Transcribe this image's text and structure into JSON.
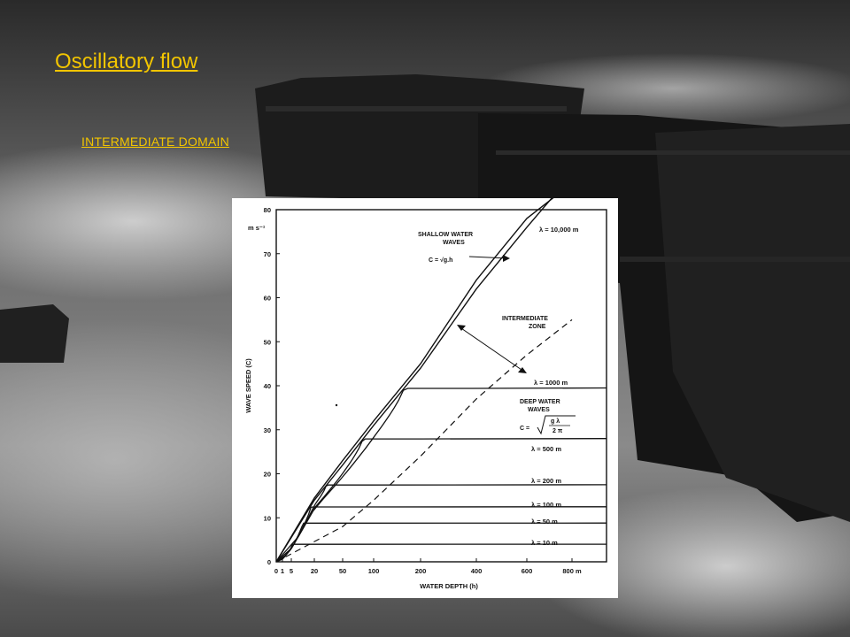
{
  "slide": {
    "title": "Oscillatory flow",
    "subtitle": "INTERMEDIATE DOMAIN"
  },
  "colors": {
    "link": "#f2c500",
    "background": "#3a3a3a"
  },
  "chart_data": {
    "type": "line",
    "xlabel": "WATER DEPTH (h)",
    "ylabel": "WAVE SPEED (C)",
    "yunit": "m s⁻¹",
    "xscale": "piecewise-sqrt",
    "xticks": [
      "0",
      "1",
      "5",
      "20",
      "50",
      "100",
      "200",
      "400",
      "600",
      "800 m"
    ],
    "xtick_values": [
      0,
      1,
      5,
      20,
      50,
      100,
      200,
      400,
      600,
      800
    ],
    "yticks": [
      "0",
      "10",
      "20",
      "30",
      "40",
      "50",
      "60",
      "70",
      "80"
    ],
    "ytick_values": [
      0,
      10,
      20,
      30,
      40,
      50,
      60,
      70,
      80
    ],
    "ylim": [
      0,
      80
    ],
    "xlim": [
      0,
      900
    ],
    "shallow_line": {
      "label": "SHALLOW WATER WAVES",
      "formula": "C = √g.h",
      "x": [
        0,
        20,
        50,
        100,
        200,
        400,
        600,
        800
      ],
      "y": [
        0,
        14,
        22,
        31,
        44,
        62,
        76,
        88
      ]
    },
    "deep_line": {
      "x": [
        0,
        50,
        100,
        200,
        400,
        600,
        800
      ],
      "y": [
        0,
        8,
        14,
        24,
        37,
        47,
        55
      ]
    },
    "annotations": {
      "intermediate": "INTERMEDIATE ZONE",
      "deep": "DEEP WATER WAVES",
      "deep_formula_lhs": "C =",
      "deep_formula_num": "g λ",
      "deep_formula_den": "2 π"
    },
    "series": [
      {
        "name": "λ = 10,000 m",
        "plateau": 88
      },
      {
        "name": "λ = 1000 m",
        "plateau": 39.5
      },
      {
        "name": "λ = 500 m",
        "plateau": 28
      },
      {
        "name": "λ = 200 m",
        "plateau": 17.5
      },
      {
        "name": "λ = 100 m",
        "plateau": 12.5
      },
      {
        "name": "λ = 50 m",
        "plateau": 8.8
      },
      {
        "name": "λ = 10 m",
        "plateau": 4
      }
    ]
  }
}
